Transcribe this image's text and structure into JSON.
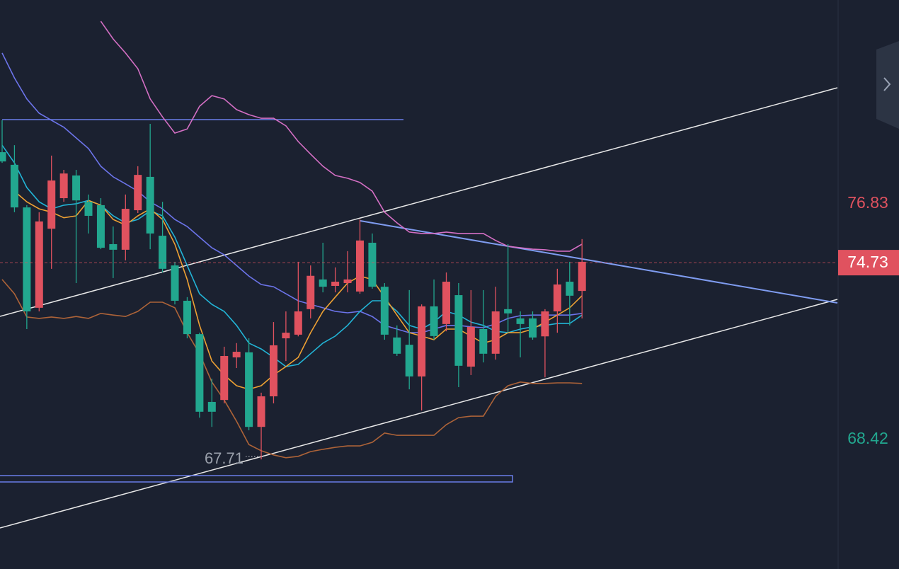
{
  "chart_data": {
    "type": "candlestick",
    "open": [
      78.67,
      78.22,
      76.7,
      73.12,
      75.94,
      77.03,
      77.84,
      76.9,
      76.78,
      75.39,
      75.19,
      76.6,
      77.79,
      75.69,
      74.63,
      73.37,
      72.18,
      69.76,
      69.83,
      71.35,
      71.53,
      68.87,
      69.96,
      72.03,
      72.16,
      73.07,
      74.13,
      73.9,
      74.0,
      73.7,
      75.44,
      73.87,
      72.06,
      71.8,
      70.67,
      73.17,
      72.54,
      73.57,
      71.02,
      72.36,
      71.48,
      73.07,
      72.74,
      72.74,
      72.1,
      72.99,
      74.05,
      73.72
    ],
    "high": [
      79.81,
      78.92,
      76.78,
      76.53,
      78.55,
      78.04,
      78.04,
      77.16,
      77.03,
      76.02,
      77.16,
      78.17,
      79.68,
      76.9,
      74.76,
      73.5,
      72.23,
      70.59,
      71.73,
      71.86,
      72.03,
      70.09,
      72.61,
      72.99,
      74.76,
      74.63,
      75.44,
      74.56,
      75.14,
      76.27,
      75.77,
      74.0,
      72.49,
      73.75,
      73.24,
      74.13,
      74.38,
      74.0,
      73.75,
      73.75,
      73.87,
      75.39,
      72.99,
      72.99,
      73.07,
      74.51,
      74.76,
      75.57
    ],
    "low": [
      78.29,
      76.53,
      72.36,
      72.99,
      74.51,
      76.9,
      74.0,
      75.77,
      75.21,
      74.18,
      74.81,
      76.5,
      75.21,
      74.38,
      73.24,
      72.03,
      69.2,
      68.87,
      69.71,
      70.97,
      68.75,
      67.71,
      69.71,
      71.22,
      72.1,
      72.74,
      73.67,
      73.67,
      73.67,
      73.62,
      73.8,
      71.98,
      71.4,
      70.21,
      69.46,
      71.98,
      72.28,
      70.29,
      70.72,
      71.17,
      71.27,
      72.23,
      71.35,
      71.98,
      70.64,
      72.23,
      72.49,
      72.74
    ],
    "close": [
      78.34,
      76.7,
      72.99,
      76.2,
      77.66,
      77.91,
      76.95,
      76.4,
      75.26,
      75.19,
      76.65,
      77.86,
      75.77,
      74.51,
      73.37,
      72.18,
      69.41,
      69.41,
      71.4,
      71.55,
      68.87,
      69.96,
      71.78,
      72.23,
      72.99,
      74.26,
      73.87,
      74.05,
      74.13,
      75.52,
      73.87,
      72.16,
      71.48,
      70.67,
      73.17,
      72.11,
      74.05,
      71.05,
      72.44,
      71.48,
      72.99,
      72.92,
      72.54,
      72.06,
      72.99,
      73.95,
      73.55,
      74.76
    ],
    "up_color": "#e0525f",
    "down_color": "#22a78f",
    "series": [
      {
        "color": "#d46fc4",
        "values": [
          null,
          null,
          null,
          null,
          null,
          null,
          null,
          null,
          83.34,
          82.71,
          82.21,
          81.65,
          80.57,
          79.93,
          79.35,
          79.5,
          80.31,
          80.69,
          80.57,
          80.19,
          80.01,
          79.88,
          79.88,
          79.61,
          79.05,
          78.6,
          78.17,
          77.84,
          77.74,
          77.59,
          77.28,
          76.53,
          76.15,
          75.82,
          75.77,
          75.77,
          75.82,
          75.77,
          75.77,
          75.77,
          75.52,
          75.31,
          75.26,
          75.21,
          75.19,
          75.14,
          75.14,
          75.39
        ]
      },
      {
        "color": "#6c74ea",
        "values": [
          82.21,
          81.32,
          80.57,
          80.06,
          79.81,
          79.56,
          79.18,
          78.8,
          78.17,
          77.79,
          77.54,
          77.28,
          76.9,
          76.65,
          76.27,
          76.02,
          75.64,
          75.26,
          75.01,
          74.63,
          74.25,
          73.95,
          73.87,
          73.62,
          73.37,
          73.24,
          73.12,
          72.99,
          72.94,
          72.99,
          72.81,
          72.49,
          72.36,
          72.23,
          72.23,
          72.36,
          72.49,
          72.49,
          72.44,
          72.41,
          72.54,
          72.74,
          72.84,
          72.86,
          72.86,
          72.86,
          72.86,
          72.92
        ]
      },
      {
        "color": "#22b4d6",
        "values": [
          78.92,
          78.29,
          77.41,
          76.9,
          76.65,
          76.78,
          76.83,
          76.95,
          76.78,
          76.4,
          76.15,
          76.27,
          76.58,
          76.4,
          75.64,
          74.63,
          73.62,
          73.24,
          72.99,
          72.49,
          71.86,
          71.65,
          71.35,
          71.02,
          71.1,
          71.48,
          71.86,
          72.11,
          72.49,
          72.99,
          73.37,
          73.37,
          72.99,
          72.49,
          72.36,
          72.61,
          72.99,
          72.86,
          72.61,
          72.49,
          72.28,
          72.23,
          72.36,
          72.44,
          72.49,
          72.56,
          72.56,
          72.86
        ]
      },
      {
        "color": "#eea133",
        "values": [
          null,
          77.28,
          76.9,
          76.65,
          76.53,
          76.33,
          76.4,
          76.95,
          76.78,
          76.27,
          76.07,
          76.4,
          76.65,
          76.27,
          75.39,
          74.13,
          72.49,
          71.22,
          70.72,
          70.34,
          70.21,
          70.34,
          70.72,
          71.02,
          71.35,
          72.23,
          72.99,
          73.5,
          74.0,
          74.25,
          74.13,
          73.5,
          72.86,
          72.23,
          72.11,
          71.98,
          72.36,
          72.36,
          72.11,
          71.86,
          71.98,
          72.23,
          72.23,
          72.36,
          72.61,
          72.86,
          73.12,
          73.55
        ]
      },
      {
        "color": "#ad6338",
        "values": [
          74.13,
          73.62,
          72.79,
          72.74,
          72.79,
          72.74,
          72.81,
          72.74,
          72.92,
          72.86,
          72.81,
          72.99,
          73.32,
          73.32,
          73.12,
          72.23,
          71.48,
          70.47,
          69.83,
          69.07,
          68.24,
          68.02,
          67.87,
          67.77,
          67.82,
          67.99,
          68.07,
          68.14,
          68.19,
          68.19,
          68.32,
          68.65,
          68.57,
          68.57,
          68.57,
          68.57,
          68.95,
          69.2,
          69.25,
          69.25,
          69.96,
          70.34,
          70.47,
          70.42,
          70.42,
          70.44,
          70.44,
          70.42
        ]
      }
    ],
    "ylim": [
      63.8,
      84.1
    ],
    "yticks": [
      76.83,
      68.42
    ],
    "ytick_colors": [
      "#e0525f",
      "#22a78f"
    ],
    "last_price": 74.73,
    "last_price_color": "#e0525f",
    "low_annotation": 67.71
  }
}
